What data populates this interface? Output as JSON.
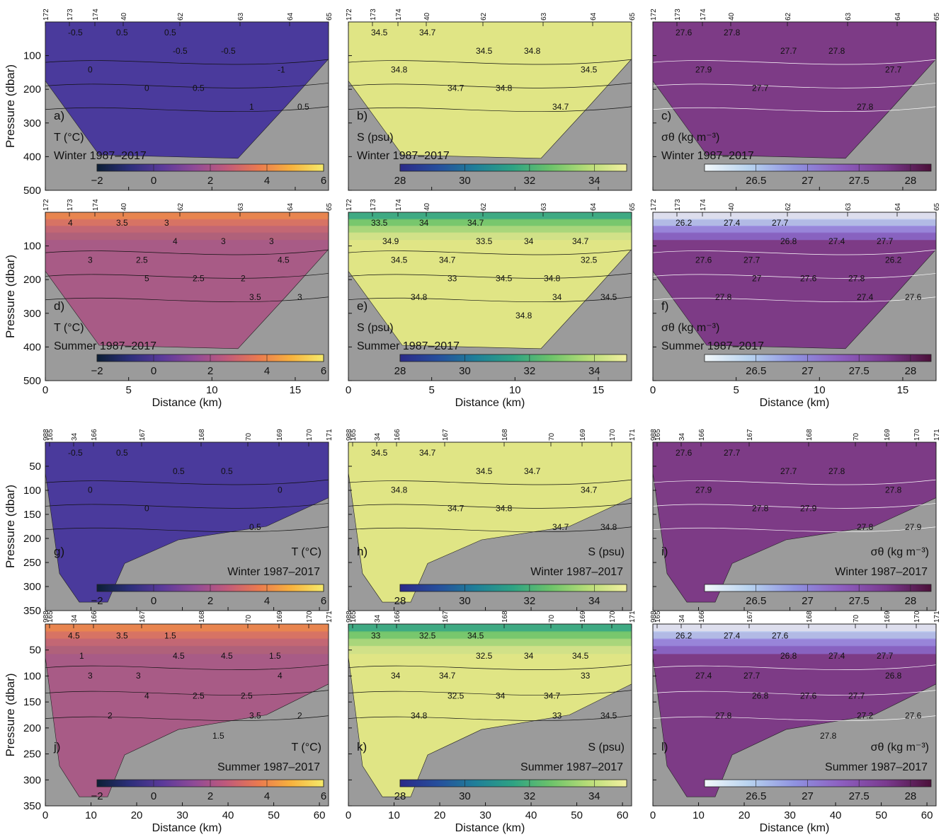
{
  "figure": {
    "ylabel": "Pressure (dbar)",
    "xlabel": "Distance (km)",
    "season_labels": {
      "winter": "Winter 1987–2017",
      "summer": "Summer 1987–2017"
    }
  },
  "colorbars": {
    "T": {
      "ticks": [
        "−2",
        "0",
        "2",
        "4",
        "6"
      ],
      "colors": [
        "#0c1f35",
        "#2c2f7a",
        "#5a3a9a",
        "#8f4a97",
        "#c05a7b",
        "#ea7a4f",
        "#f7b23e",
        "#f5ea6a"
      ]
    },
    "S": {
      "ticks": [
        "28",
        "30",
        "32",
        "34"
      ],
      "colors": [
        "#2b2a88",
        "#264e9c",
        "#1f7f99",
        "#2ea383",
        "#6dc36a",
        "#b9dd78",
        "#f3f0a0"
      ]
    },
    "D": {
      "ticks": [
        "26.5",
        "27",
        "27.5",
        "28"
      ],
      "colors": [
        "#f2f8fa",
        "#b7d2ef",
        "#8f92e0",
        "#8d5fc0",
        "#7a3a8f",
        "#4b1039"
      ]
    }
  },
  "colors": {
    "terrain": "#9b9b9b",
    "T_winter": "#4a3a9c",
    "T_summer": "#a85b86",
    "S_fill": "#e0e585",
    "D_fill": "#7d3b86"
  },
  "chart_data": [
    {
      "panel": "a)",
      "type": "heatmap",
      "variable": "T (°C)",
      "season": "Winter 1987–2017",
      "xlim": [
        0,
        17
      ],
      "ylim": [
        500,
        0
      ],
      "stations": [
        "172",
        "173",
        "174",
        "40",
        "62",
        "63",
        "64",
        "65"
      ],
      "contour_labels": [
        "-0.5",
        "-0.5",
        "-1",
        "0",
        "1",
        "0.5",
        "-0.5",
        "0",
        "0.5",
        "0.5",
        "0.5"
      ],
      "colorbar_range": [
        -2,
        6
      ]
    },
    {
      "panel": "b)",
      "type": "heatmap",
      "variable": "S (psu)",
      "season": "Winter 1987–2017",
      "xlim": [
        0,
        17
      ],
      "ylim": [
        500,
        0
      ],
      "stations": [
        "172",
        "173",
        "174",
        "40",
        "62",
        "63",
        "64",
        "65"
      ],
      "contour_labels": [
        "34.5",
        "34.5",
        "34.5",
        "34.7",
        "34.7",
        "34.7",
        "34.8",
        "34.8",
        "34.8"
      ],
      "colorbar_range": [
        28,
        35
      ]
    },
    {
      "panel": "c)",
      "type": "heatmap",
      "variable": "σθ (kg m⁻³)",
      "season": "Winter 1987–2017",
      "xlim": [
        0,
        17
      ],
      "ylim": [
        500,
        0
      ],
      "stations": [
        "172",
        "173",
        "174",
        "40",
        "62",
        "63",
        "64",
        "65"
      ],
      "contour_labels": [
        "27.6",
        "27.7",
        "27.7",
        "27.7",
        "27.8",
        "27.8",
        "27.8",
        "27.9"
      ],
      "colorbar_range": [
        26,
        28.2
      ]
    },
    {
      "panel": "d)",
      "type": "heatmap",
      "variable": "T (°C)",
      "season": "Summer 1987–2017",
      "xlim": [
        0,
        17
      ],
      "ylim": [
        500,
        0
      ],
      "stations": [
        "172",
        "173",
        "174",
        "40",
        "62",
        "63",
        "64",
        "65"
      ],
      "contour_labels": [
        "4",
        "4",
        "4.5",
        "5",
        "3.5",
        "3.5",
        "3",
        "3",
        "2.5",
        "3",
        "3",
        "3",
        "2.5",
        "2"
      ],
      "colorbar_range": [
        -2,
        6
      ]
    },
    {
      "panel": "e)",
      "type": "heatmap",
      "variable": "S (psu)",
      "season": "Summer 1987–2017",
      "xlim": [
        0,
        17
      ],
      "ylim": [
        500,
        0
      ],
      "stations": [
        "172",
        "173",
        "174",
        "40",
        "62",
        "63",
        "64",
        "65"
      ],
      "contour_labels": [
        "33.5",
        "33.5",
        "32.5",
        "33",
        "34",
        "34",
        "34",
        "34.5",
        "34.5",
        "34.5",
        "34.7",
        "34.7",
        "34.7",
        "34.8",
        "34.8",
        "34.8",
        "34.9"
      ],
      "colorbar_range": [
        28,
        35
      ]
    },
    {
      "panel": "f)",
      "type": "heatmap",
      "variable": "σθ (kg m⁻³)",
      "season": "Summer 1987–2017",
      "xlim": [
        0,
        17
      ],
      "ylim": [
        500,
        0
      ],
      "stations": [
        "172",
        "173",
        "174",
        "40",
        "62",
        "63",
        "64",
        "65"
      ],
      "contour_labels": [
        "26.2",
        "26.8",
        "26.2",
        "27",
        "27.4",
        "27.4",
        "27.4",
        "27.6",
        "27.6",
        "27.6",
        "27.7",
        "27.7",
        "27.7",
        "27.8",
        "27.8"
      ],
      "colorbar_range": [
        26,
        28.2
      ]
    },
    {
      "panel": "g)",
      "type": "heatmap",
      "variable": "T (°C)",
      "season": "Winter 1987–2017",
      "xlim": [
        0,
        62
      ],
      "ylim": [
        350,
        0
      ],
      "stations": [
        "988",
        "165",
        "34",
        "166",
        "167",
        "168",
        "70",
        "169",
        "170",
        "171"
      ],
      "contour_labels": [
        "-0.5",
        "0.5",
        "0",
        "0",
        "0.5",
        "0.5",
        "0.5",
        "0"
      ],
      "colorbar_range": [
        -2,
        6
      ]
    },
    {
      "panel": "h)",
      "type": "heatmap",
      "variable": "S (psu)",
      "season": "Winter 1987–2017",
      "xlim": [
        0,
        62
      ],
      "ylim": [
        350,
        0
      ],
      "stations": [
        "988",
        "165",
        "34",
        "166",
        "167",
        "168",
        "70",
        "169",
        "170",
        "171"
      ],
      "contour_labels": [
        "34.5",
        "34.5",
        "34.7",
        "34.7",
        "34.7",
        "34.7",
        "34.7",
        "34.8",
        "34.8",
        "34.8"
      ],
      "colorbar_range": [
        28,
        35
      ]
    },
    {
      "panel": "i)",
      "type": "heatmap",
      "variable": "σθ (kg m⁻³)",
      "season": "Winter 1987–2017",
      "xlim": [
        0,
        62
      ],
      "ylim": [
        350,
        0
      ],
      "stations": [
        "988",
        "165",
        "34",
        "166",
        "167",
        "168",
        "70",
        "169",
        "170",
        "171"
      ],
      "contour_labels": [
        "27.6",
        "27.7",
        "27.8",
        "27.8",
        "27.8",
        "27.7",
        "27.8",
        "27.9",
        "27.9",
        "27.9"
      ],
      "colorbar_range": [
        26,
        28.2
      ]
    },
    {
      "panel": "j)",
      "type": "heatmap",
      "variable": "T (°C)",
      "season": "Summer 1987–2017",
      "xlim": [
        0,
        62
      ],
      "ylim": [
        350,
        0
      ],
      "stations": [
        "988",
        "165",
        "34",
        "166",
        "167",
        "168",
        "70",
        "169",
        "170",
        "171"
      ],
      "contour_labels": [
        "4.5",
        "4.5",
        "4",
        "4",
        "3.5",
        "3.5",
        "4.5",
        "3",
        "2.5",
        "2",
        "1.5",
        "1.5",
        "3",
        "2.5",
        "2",
        "1.5",
        "1"
      ],
      "colorbar_range": [
        -2,
        6
      ]
    },
    {
      "panel": "k)",
      "type": "heatmap",
      "variable": "S (psu)",
      "season": "Summer 1987–2017",
      "xlim": [
        0,
        62
      ],
      "ylim": [
        350,
        0
      ],
      "stations": [
        "988",
        "165",
        "34",
        "166",
        "167",
        "168",
        "70",
        "169",
        "170",
        "171"
      ],
      "contour_labels": [
        "33",
        "32.5",
        "33",
        "32.5",
        "33",
        "32.5",
        "34",
        "34",
        "34",
        "34.5",
        "34.5",
        "34.5",
        "34.7",
        "34.7",
        "34.8"
      ],
      "colorbar_range": [
        28,
        35
      ]
    },
    {
      "panel": "l)",
      "type": "heatmap",
      "variable": "σθ (kg m⁻³)",
      "season": "Summer 1987–2017",
      "xlim": [
        0,
        62
      ],
      "ylim": [
        350,
        0
      ],
      "stations": [
        "988",
        "165",
        "34",
        "166",
        "167",
        "168",
        "70",
        "169",
        "170",
        "171"
      ],
      "contour_labels": [
        "26.2",
        "26.8",
        "26.8",
        "26.8",
        "27.2",
        "27.4",
        "27.4",
        "27.4",
        "27.6",
        "27.6",
        "27.6",
        "27.7",
        "27.7",
        "27.7",
        "27.8",
        "27.8"
      ],
      "colorbar_range": [
        26,
        28.2
      ]
    }
  ],
  "axes": {
    "top_y_ticks": [
      "100",
      "200",
      "300",
      "400",
      "500"
    ],
    "bottom_y_ticks": [
      "50",
      "100",
      "150",
      "200",
      "250",
      "300",
      "350"
    ],
    "top_x_ticks": [
      "0",
      "5",
      "10",
      "15"
    ],
    "bottom_x_ticks": [
      "0",
      "10",
      "20",
      "30",
      "40",
      "50",
      "60"
    ]
  }
}
